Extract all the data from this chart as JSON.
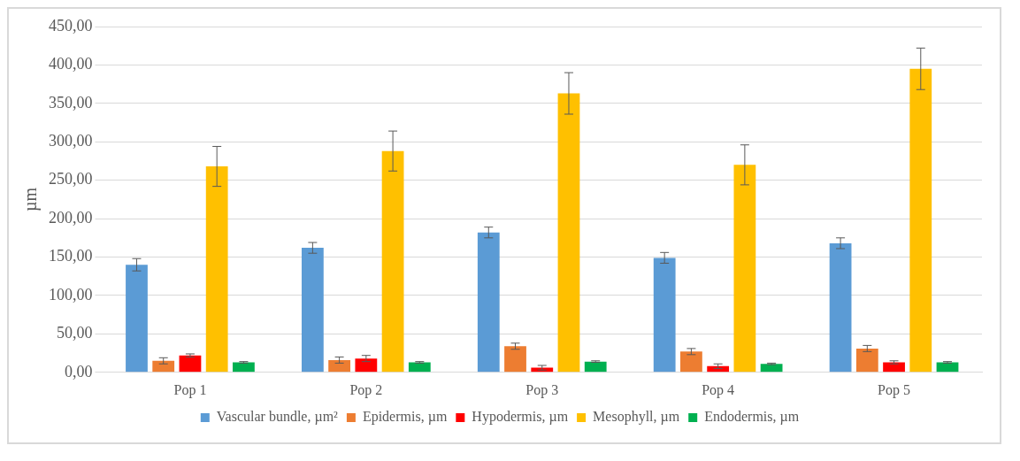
{
  "chart_data": {
    "type": "bar",
    "ylabel": "µm",
    "categories": [
      "Pop 1",
      "Pop 2",
      "Pop 3",
      "Pop 4",
      "Pop 5"
    ],
    "series": [
      {
        "name": "Vascular bundle, µm²",
        "color": "#5b9bd5",
        "values": [
          140,
          162,
          182,
          149,
          168
        ],
        "errors": [
          8,
          7,
          7,
          7,
          7
        ]
      },
      {
        "name": "Epidermis, µm",
        "color": "#ed7d31",
        "values": [
          15,
          16,
          34,
          27,
          31
        ],
        "errors": [
          4,
          4,
          4,
          4,
          4
        ]
      },
      {
        "name": "Hypodermis, µm",
        "color": "#ff0000",
        "values": [
          22,
          18,
          6,
          8,
          13
        ],
        "errors": [
          2,
          4,
          3,
          3,
          2
        ]
      },
      {
        "name": "Mesophyll, µm",
        "color": "#ffc000",
        "values": [
          268,
          288,
          363,
          270,
          395
        ],
        "errors": [
          26,
          26,
          27,
          26,
          27
        ]
      },
      {
        "name": "Endodermis, µm",
        "color": "#00b050",
        "values": [
          13,
          13,
          14,
          11,
          13
        ],
        "errors": [
          1,
          1,
          1,
          1,
          1
        ]
      }
    ],
    "ylim": [
      0,
      450
    ],
    "yticks": [
      {
        "value": 0,
        "label": "0,00"
      },
      {
        "value": 50,
        "label": "50,00"
      },
      {
        "value": 100,
        "label": "100,00"
      },
      {
        "value": 150,
        "label": "150,00"
      },
      {
        "value": 200,
        "label": "200,00"
      },
      {
        "value": 250,
        "label": "250,00"
      },
      {
        "value": 300,
        "label": "300,00"
      },
      {
        "value": 350,
        "label": "350,00"
      },
      {
        "value": 400,
        "label": "400,00"
      },
      {
        "value": 450,
        "label": "450,00"
      }
    ],
    "grid": "y",
    "legend": "bottom"
  }
}
